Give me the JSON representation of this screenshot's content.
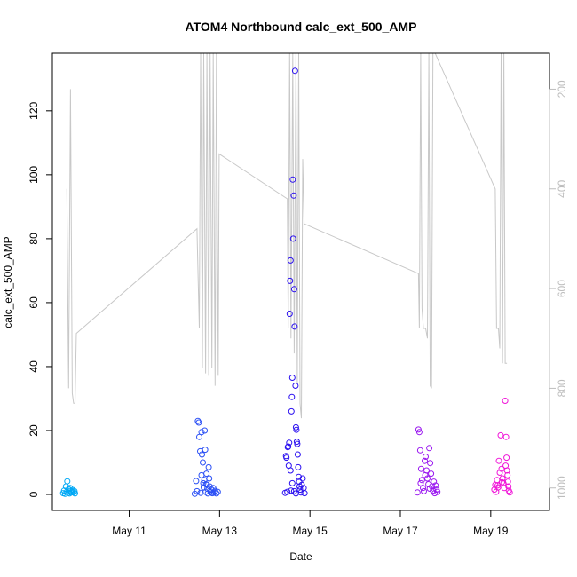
{
  "chart_data": {
    "type": "scatter",
    "title": "ATOM4 Northbound calc_ext_500_AMP",
    "xlabel": "Date",
    "ylabel": "calc_ext_500_AMP",
    "xlim": [
      9.3,
      20.3
    ],
    "ylim": [
      -5,
      138
    ],
    "x_ticks": [
      {
        "value": 11,
        "label": "May 11"
      },
      {
        "value": 13,
        "label": "May 13"
      },
      {
        "value": 15,
        "label": "May 15"
      },
      {
        "value": 17,
        "label": "May 17"
      },
      {
        "value": 19,
        "label": "May 19"
      }
    ],
    "y_ticks": [
      0,
      20,
      40,
      60,
      80,
      100,
      120
    ],
    "y2_axis": {
      "ylim": [
        1045,
        128
      ],
      "ticks": [
        200,
        400,
        600,
        800,
        1000
      ],
      "color": "#bdbdbd",
      "reversed": true
    },
    "line_series": {
      "name": "",
      "color": "#c8c8c8",
      "points": [
        [
          9.62,
          400
        ],
        [
          9.66,
          800
        ],
        [
          9.7,
          200
        ],
        [
          9.74,
          810
        ],
        [
          9.77,
          830
        ],
        [
          9.8,
          830
        ],
        [
          9.83,
          690
        ],
        [
          12.5,
          480
        ],
        [
          12.55,
          680
        ],
        [
          12.58,
          128
        ],
        [
          12.62,
          760
        ],
        [
          12.65,
          128
        ],
        [
          12.69,
          770
        ],
        [
          12.72,
          128
        ],
        [
          12.76,
          775
        ],
        [
          12.79,
          128
        ],
        [
          12.83,
          760
        ],
        [
          12.86,
          128
        ],
        [
          12.9,
          795
        ],
        [
          12.93,
          128
        ],
        [
          12.97,
          775
        ],
        [
          12.99,
          330
        ],
        [
          14.5,
          420
        ],
        [
          14.52,
          680
        ],
        [
          14.55,
          128
        ],
        [
          14.58,
          700
        ],
        [
          14.62,
          128
        ],
        [
          14.65,
          730
        ],
        [
          14.69,
          128
        ],
        [
          14.72,
          790
        ],
        [
          14.75,
          128
        ],
        [
          14.78,
          830
        ],
        [
          14.81,
          860
        ],
        [
          14.84,
          340
        ],
        [
          14.87,
          470
        ],
        [
          17.4,
          570
        ],
        [
          17.42,
          680
        ],
        [
          17.45,
          128
        ],
        [
          17.48,
          640
        ],
        [
          17.51,
          680
        ],
        [
          17.56,
          680
        ],
        [
          17.6,
          700
        ],
        [
          17.63,
          128
        ],
        [
          17.66,
          795
        ],
        [
          17.69,
          800
        ],
        [
          17.72,
          128
        ],
        [
          17.77,
          128
        ],
        [
          19.1,
          400
        ],
        [
          19.13,
          680
        ],
        [
          19.17,
          680
        ],
        [
          19.2,
          720
        ],
        [
          19.23,
          128
        ],
        [
          19.26,
          750
        ],
        [
          19.29,
          128
        ],
        [
          19.32,
          750
        ],
        [
          19.36,
          750
        ]
      ]
    },
    "scatter_groups": [
      {
        "name": "",
        "color": "#00a8f5",
        "points": [
          [
            9.54,
            0.4
          ],
          [
            9.56,
            1.2
          ],
          [
            9.58,
            0.2
          ],
          [
            9.6,
            2.5
          ],
          [
            9.62,
            0.8
          ],
          [
            9.63,
            4.1
          ],
          [
            9.65,
            0.5
          ],
          [
            9.66,
            1.6
          ],
          [
            9.68,
            0.3
          ],
          [
            9.69,
            2.0
          ],
          [
            9.7,
            1.1
          ],
          [
            9.72,
            0.6
          ],
          [
            9.73,
            0.9
          ],
          [
            9.75,
            1.4
          ],
          [
            9.77,
            0.7
          ],
          [
            9.79,
            1.0
          ],
          [
            9.8,
            0.3
          ]
        ]
      },
      {
        "name": "",
        "color": "#2a4ff5",
        "points": [
          [
            12.45,
            0.2
          ],
          [
            12.48,
            4.2
          ],
          [
            12.5,
            1.0
          ],
          [
            12.52,
            23.0
          ],
          [
            12.54,
            22.5
          ],
          [
            12.55,
            18.0
          ],
          [
            12.57,
            13.5
          ],
          [
            12.58,
            0.5
          ],
          [
            12.6,
            19.5
          ],
          [
            12.61,
            12.5
          ],
          [
            12.63,
            10.0
          ],
          [
            12.64,
            3.5
          ],
          [
            12.65,
            2.2
          ],
          [
            12.67,
            20.0
          ],
          [
            12.68,
            14.0
          ],
          [
            12.69,
            0.8
          ],
          [
            12.71,
            6.5
          ],
          [
            12.72,
            3.0
          ],
          [
            12.73,
            1.8
          ],
          [
            12.74,
            0.3
          ],
          [
            12.76,
            8.5
          ],
          [
            12.77,
            5.0
          ],
          [
            12.78,
            2.5
          ],
          [
            12.8,
            0.7
          ],
          [
            12.82,
            1.5
          ],
          [
            12.84,
            0.4
          ],
          [
            12.86,
            2.0
          ],
          [
            12.88,
            0.6
          ],
          [
            12.9,
            1.1
          ],
          [
            12.93,
            0.3
          ],
          [
            12.96,
            0.8
          ],
          [
            12.6,
            6.0
          ],
          [
            12.66,
            4.5
          ],
          [
            12.7,
            3.2
          ]
        ]
      },
      {
        "name": "",
        "color": "#2b10f0",
        "points": [
          [
            14.45,
            0.5
          ],
          [
            14.47,
            12.0
          ],
          [
            14.48,
            11.5
          ],
          [
            14.5,
            0.8
          ],
          [
            14.51,
            14.8
          ],
          [
            14.52,
            15.0
          ],
          [
            14.54,
            16.2
          ],
          [
            14.55,
            56.5
          ],
          [
            14.56,
            66.8
          ],
          [
            14.57,
            73.2
          ],
          [
            14.58,
            1.2
          ],
          [
            14.59,
            26.0
          ],
          [
            14.6,
            30.5
          ],
          [
            14.61,
            36.5
          ],
          [
            14.62,
            98.5
          ],
          [
            14.63,
            80.0
          ],
          [
            14.64,
            93.5
          ],
          [
            14.65,
            64.2
          ],
          [
            14.66,
            52.5
          ],
          [
            14.67,
            132.5
          ],
          [
            14.68,
            34.0
          ],
          [
            14.69,
            21.0
          ],
          [
            14.7,
            20.2
          ],
          [
            14.71,
            16.5
          ],
          [
            14.72,
            15.8
          ],
          [
            14.73,
            12.5
          ],
          [
            14.74,
            8.5
          ],
          [
            14.75,
            5.5
          ],
          [
            14.76,
            4.0
          ],
          [
            14.77,
            2.5
          ],
          [
            14.78,
            1.5
          ],
          [
            14.8,
            0.6
          ],
          [
            14.82,
            3.0
          ],
          [
            14.84,
            5.0
          ],
          [
            14.86,
            2.0
          ],
          [
            14.88,
            0.4
          ],
          [
            14.53,
            9.0
          ],
          [
            14.57,
            7.5
          ],
          [
            14.61,
            3.5
          ],
          [
            14.65,
            1.0
          ],
          [
            14.69,
            0.3
          ]
        ]
      },
      {
        "name": "",
        "color": "#9a18f0",
        "points": [
          [
            17.38,
            0.6
          ],
          [
            17.4,
            20.3
          ],
          [
            17.42,
            19.5
          ],
          [
            17.44,
            13.8
          ],
          [
            17.46,
            8.0
          ],
          [
            17.48,
            4.5
          ],
          [
            17.5,
            2.0
          ],
          [
            17.52,
            1.0
          ],
          [
            17.54,
            10.5
          ],
          [
            17.56,
            11.8
          ],
          [
            17.58,
            7.5
          ],
          [
            17.6,
            5.0
          ],
          [
            17.62,
            3.2
          ],
          [
            17.64,
            14.5
          ],
          [
            17.66,
            9.8
          ],
          [
            17.68,
            6.5
          ],
          [
            17.7,
            2.5
          ],
          [
            17.72,
            1.2
          ],
          [
            17.74,
            4.0
          ],
          [
            17.76,
            0.4
          ],
          [
            17.78,
            2.8
          ],
          [
            17.8,
            1.5
          ],
          [
            17.82,
            0.8
          ],
          [
            17.45,
            3.5
          ],
          [
            17.55,
            6.0
          ],
          [
            17.65,
            1.8
          ]
        ]
      },
      {
        "name": "",
        "color": "#f015d8",
        "points": [
          [
            19.08,
            1.5
          ],
          [
            19.1,
            3.0
          ],
          [
            19.12,
            0.8
          ],
          [
            19.14,
            4.5
          ],
          [
            19.16,
            2.2
          ],
          [
            19.18,
            10.5
          ],
          [
            19.2,
            6.8
          ],
          [
            19.22,
            18.5
          ],
          [
            19.24,
            8.0
          ],
          [
            19.26,
            5.0
          ],
          [
            19.28,
            3.5
          ],
          [
            19.3,
            2.0
          ],
          [
            19.32,
            29.3
          ],
          [
            19.34,
            18.0
          ],
          [
            19.35,
            11.5
          ],
          [
            19.36,
            7.5
          ],
          [
            19.38,
            4.0
          ],
          [
            19.39,
            2.5
          ],
          [
            19.4,
            1.2
          ],
          [
            19.42,
            0.6
          ],
          [
            19.15,
            2.8
          ],
          [
            19.25,
            3.8
          ],
          [
            19.33,
            9.0
          ],
          [
            19.37,
            6.0
          ]
        ]
      }
    ]
  }
}
